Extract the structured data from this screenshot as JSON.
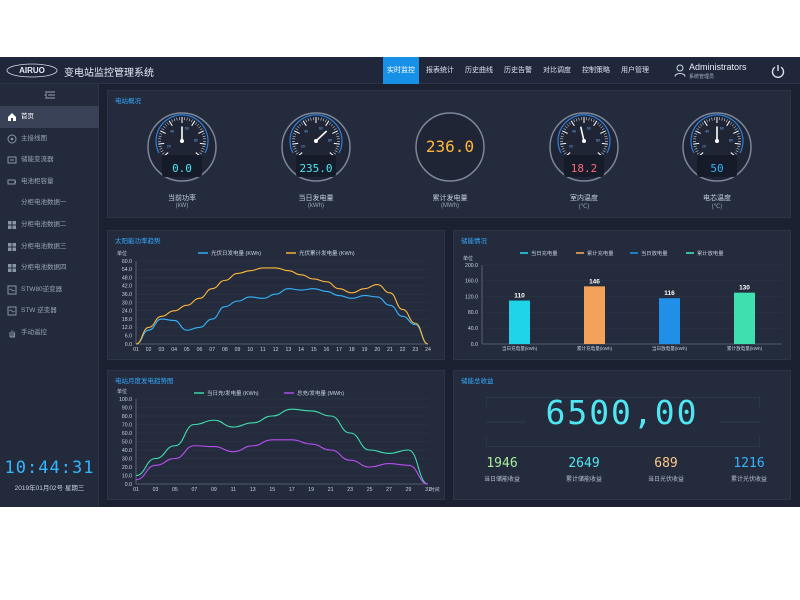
{
  "header": {
    "logo_text": "AIRUO",
    "title": "变电站监控管理系统",
    "nav": [
      "实时监控",
      "报表统计",
      "历史曲线",
      "历史告警",
      "对比调度",
      "控制策略",
      "用户管理"
    ],
    "active_nav": "实时监控",
    "user": {
      "name": "Administrators",
      "role": "系统管理员"
    }
  },
  "sidebar": {
    "items": [
      {
        "label": "首页",
        "icon": "home-icon",
        "active": true
      },
      {
        "label": "主接线图",
        "icon": "wiring-icon",
        "active": false
      },
      {
        "label": "储能变流器",
        "icon": "converter-icon",
        "active": false
      },
      {
        "label": "电池柜容量",
        "icon": "battery-icon",
        "active": false
      },
      {
        "label": "分柜电池数据一",
        "icon": "",
        "active": false
      },
      {
        "label": "分柜电池数据二",
        "icon": "grid-icon",
        "active": false
      },
      {
        "label": "分柜电池数据三",
        "icon": "grid-icon",
        "active": false
      },
      {
        "label": "分柜电池数据四",
        "icon": "grid-icon",
        "active": false
      },
      {
        "label": "STW80逆变器",
        "icon": "inverter-icon",
        "active": false
      },
      {
        "label": "STW 逆变器",
        "icon": "inverter-icon",
        "active": false
      },
      {
        "label": "手动遥控",
        "icon": "hand-icon",
        "active": false
      }
    ],
    "clock": "10:44:31",
    "date": "2019年01月02号  星期三"
  },
  "overview": {
    "title": "电站概况",
    "gauges": [
      {
        "type": "dial",
        "value": "0.0",
        "label": "当前功率",
        "unit": "(kW)",
        "color": "#4fe6f2",
        "fraction": 0.5
      },
      {
        "type": "dial",
        "value": "235.0",
        "label": "当日发电量",
        "unit": "(kWh)",
        "color": "#4fe6f2",
        "fraction": 0.68
      },
      {
        "type": "ring",
        "value": "236.0",
        "label": "累计发电量",
        "unit": "(MWh)",
        "color": "#ffb83a"
      },
      {
        "type": "dial",
        "value": "18.2",
        "label": "室内温度",
        "unit": "(℃)",
        "color": "#ff6b7a",
        "fraction": 0.45
      },
      {
        "type": "dial",
        "value": "50",
        "label": "电芯温度",
        "unit": "(℃)",
        "color": "#33b6ff",
        "fraction": 0.5
      }
    ]
  },
  "solar_panel": {
    "title": "太阳能功率趋势",
    "chart_data": {
      "type": "line",
      "ylabel": "单位",
      "xlabel": "",
      "ylim": [
        0,
        60
      ],
      "yticks": [
        "0.0",
        "6.0",
        "12.0",
        "18.0",
        "24.0",
        "30.0",
        "36.0",
        "42.0",
        "48.0",
        "54.0",
        "60.0"
      ],
      "categories": [
        "01",
        "02",
        "03",
        "04",
        "05",
        "06",
        "07",
        "08",
        "09",
        "10",
        "11",
        "12",
        "13",
        "14",
        "15",
        "16",
        "17",
        "18",
        "19",
        "20",
        "21",
        "22",
        "23",
        "24"
      ],
      "series": [
        {
          "name": "光伏日发电量 (KWh)",
          "color": "#33b6ff",
          "values": [
            0,
            10,
            18,
            17,
            10,
            12,
            18,
            27,
            31,
            34,
            33,
            36,
            40,
            39,
            40,
            38,
            35,
            33,
            35,
            34,
            28,
            20,
            14,
            0
          ]
        },
        {
          "name": "光伏累计发电量 (KWh)",
          "color": "#ffb83a",
          "values": [
            0,
            12,
            20,
            24,
            28,
            33,
            40,
            46,
            51,
            53,
            55,
            55,
            53,
            50,
            47,
            45,
            40,
            37,
            40,
            43,
            37,
            25,
            15,
            0
          ]
        }
      ]
    }
  },
  "storage_panel": {
    "title": "储能情况",
    "chart_data": {
      "type": "bar",
      "ylabel": "单位",
      "ylim": [
        0,
        200
      ],
      "yticks": [
        "0.0",
        "40.0",
        "80.0",
        "120.0",
        "160.0",
        "200.0"
      ],
      "categories": [
        "当日充电量(kWh)",
        "累计充电量(kWh)",
        "当日放电量(kWh)",
        "累计放电量(kWh)"
      ],
      "legend": [
        "当日充电量",
        "累计充电量",
        "当日放电量",
        "累计放电量"
      ],
      "values": [
        110,
        146,
        116,
        130
      ],
      "colors": [
        "#1fd4e8",
        "#f4a259",
        "#1f8fe8",
        "#3fe0b0"
      ]
    }
  },
  "monthly_panel": {
    "title": "电站月度发电趋势图",
    "chart_data": {
      "type": "line",
      "ylabel": "单位",
      "xlabel": "时间",
      "ylim": [
        0,
        100
      ],
      "yticks": [
        "0.0",
        "10.0",
        "20.0",
        "30.0",
        "40.0",
        "50.0",
        "60.0",
        "70.0",
        "80.0",
        "90.0",
        "100.0"
      ],
      "categories": [
        "01",
        "03",
        "05",
        "07",
        "09",
        "11",
        "13",
        "15",
        "17",
        "19",
        "21",
        "23",
        "25",
        "27",
        "29",
        "31"
      ],
      "series": [
        {
          "name": "当日充/发电量 (KWh)",
          "color": "#3fe0b0",
          "values": [
            10,
            30,
            45,
            70,
            75,
            67,
            72,
            80,
            88,
            86,
            80,
            60,
            40,
            36,
            40,
            0
          ]
        },
        {
          "name": "总充/发电量 (MWh)",
          "color": "#b84ef2",
          "values": [
            5,
            22,
            30,
            45,
            44,
            38,
            45,
            52,
            52,
            47,
            40,
            28,
            20,
            24,
            22,
            0
          ]
        }
      ]
    }
  },
  "revenue_panel": {
    "title": "储能总收益",
    "total": "6500,00",
    "stats": [
      {
        "value": "1946",
        "label": "当日储能收益",
        "color": "#a8ef9e"
      },
      {
        "value": "2649",
        "label": "累计储能收益",
        "color": "#4fe6f2"
      },
      {
        "value": "689",
        "label": "当日光伏收益",
        "color": "#ffc98a"
      },
      {
        "value": "1216",
        "label": "累计光伏收益",
        "color": "#33b6ff"
      }
    ]
  }
}
